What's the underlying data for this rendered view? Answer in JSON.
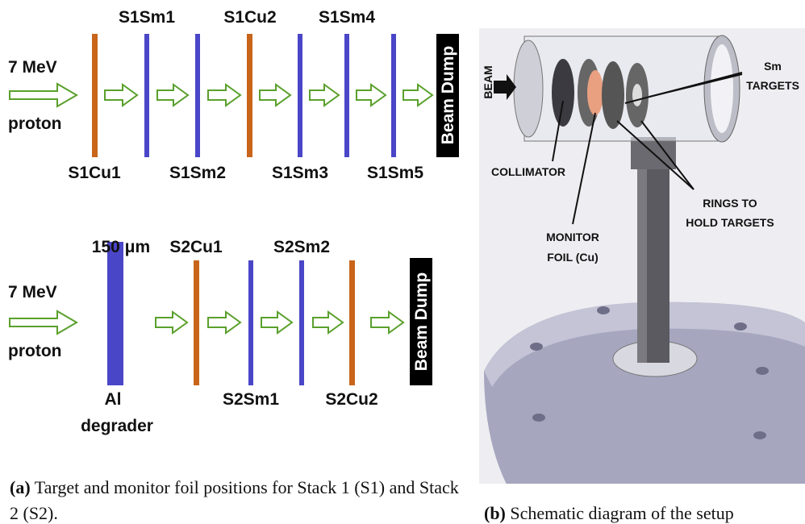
{
  "panel_a": {
    "stack1": {
      "beam_energy": "7 MeV",
      "particle": "proton",
      "top_labels": [
        "S1Sm1",
        "S1Cu2",
        "S1Sm4"
      ],
      "bottom_labels": [
        "S1Cu1",
        "S1Sm2",
        "S1Sm3",
        "S1Sm5"
      ],
      "beam_dump": "Beam Dump"
    },
    "stack2": {
      "beam_energy": "7 MeV",
      "particle": "proton",
      "degrader_thickness": "150 μm",
      "degrader_material": "Al",
      "degrader_word": "degrader",
      "top_labels": [
        "S2Cu1",
        "S2Sm2"
      ],
      "bottom_labels": [
        "S2Sm1",
        "S2Cu2"
      ],
      "beam_dump": "Beam Dump"
    },
    "caption": {
      "label": "(a)",
      "text": "Target and monitor foil positions for Stack 1 (S1) and Stack 2 (S2)."
    }
  },
  "panel_b": {
    "labels": {
      "beam": "BEAM",
      "sm": "Sm",
      "targets": "TARGETS",
      "collimator": "COLLIMATOR",
      "rings_1": "RINGS TO",
      "rings_2": "HOLD TARGETS",
      "monitor_1": "MONITOR",
      "monitor_2": "FOIL (Cu)"
    },
    "caption": {
      "label": "(b)",
      "text": "Schematic diagram of the setup"
    }
  }
}
